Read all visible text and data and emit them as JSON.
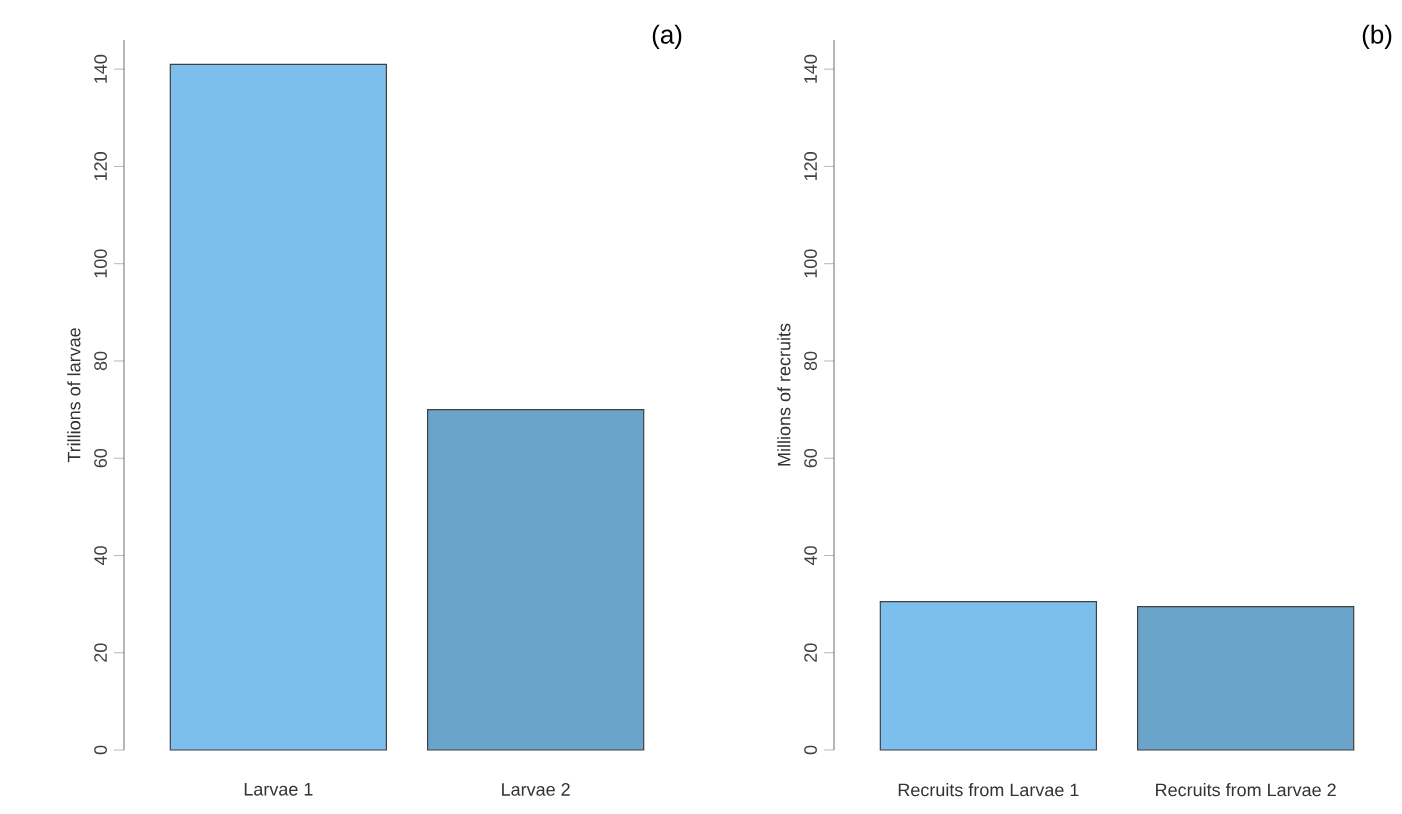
{
  "chart_data": [
    {
      "type": "bar",
      "title": "(a)",
      "ylabel": "Trillions of larvae",
      "categories": [
        "Larvae 1",
        "Larvae 2"
      ],
      "values": [
        141,
        70
      ],
      "colors": [
        "#7dbfec",
        "#6ba4cb"
      ],
      "ylim": [
        0,
        146
      ],
      "yticks": [
        0,
        20,
        40,
        60,
        80,
        100,
        120,
        140
      ],
      "grid": false
    },
    {
      "type": "bar",
      "title": "(b)",
      "ylabel": "Millions of recruits",
      "categories": [
        "Recruits from Larvae 1",
        "Recruits from Larvae 2"
      ],
      "values": [
        30.5,
        29.5
      ],
      "colors": [
        "#7dbfec",
        "#6ba4cb"
      ],
      "ylim": [
        0,
        146
      ],
      "yticks": [
        0,
        20,
        40,
        60,
        80,
        100,
        120,
        140
      ],
      "grid": false
    }
  ]
}
